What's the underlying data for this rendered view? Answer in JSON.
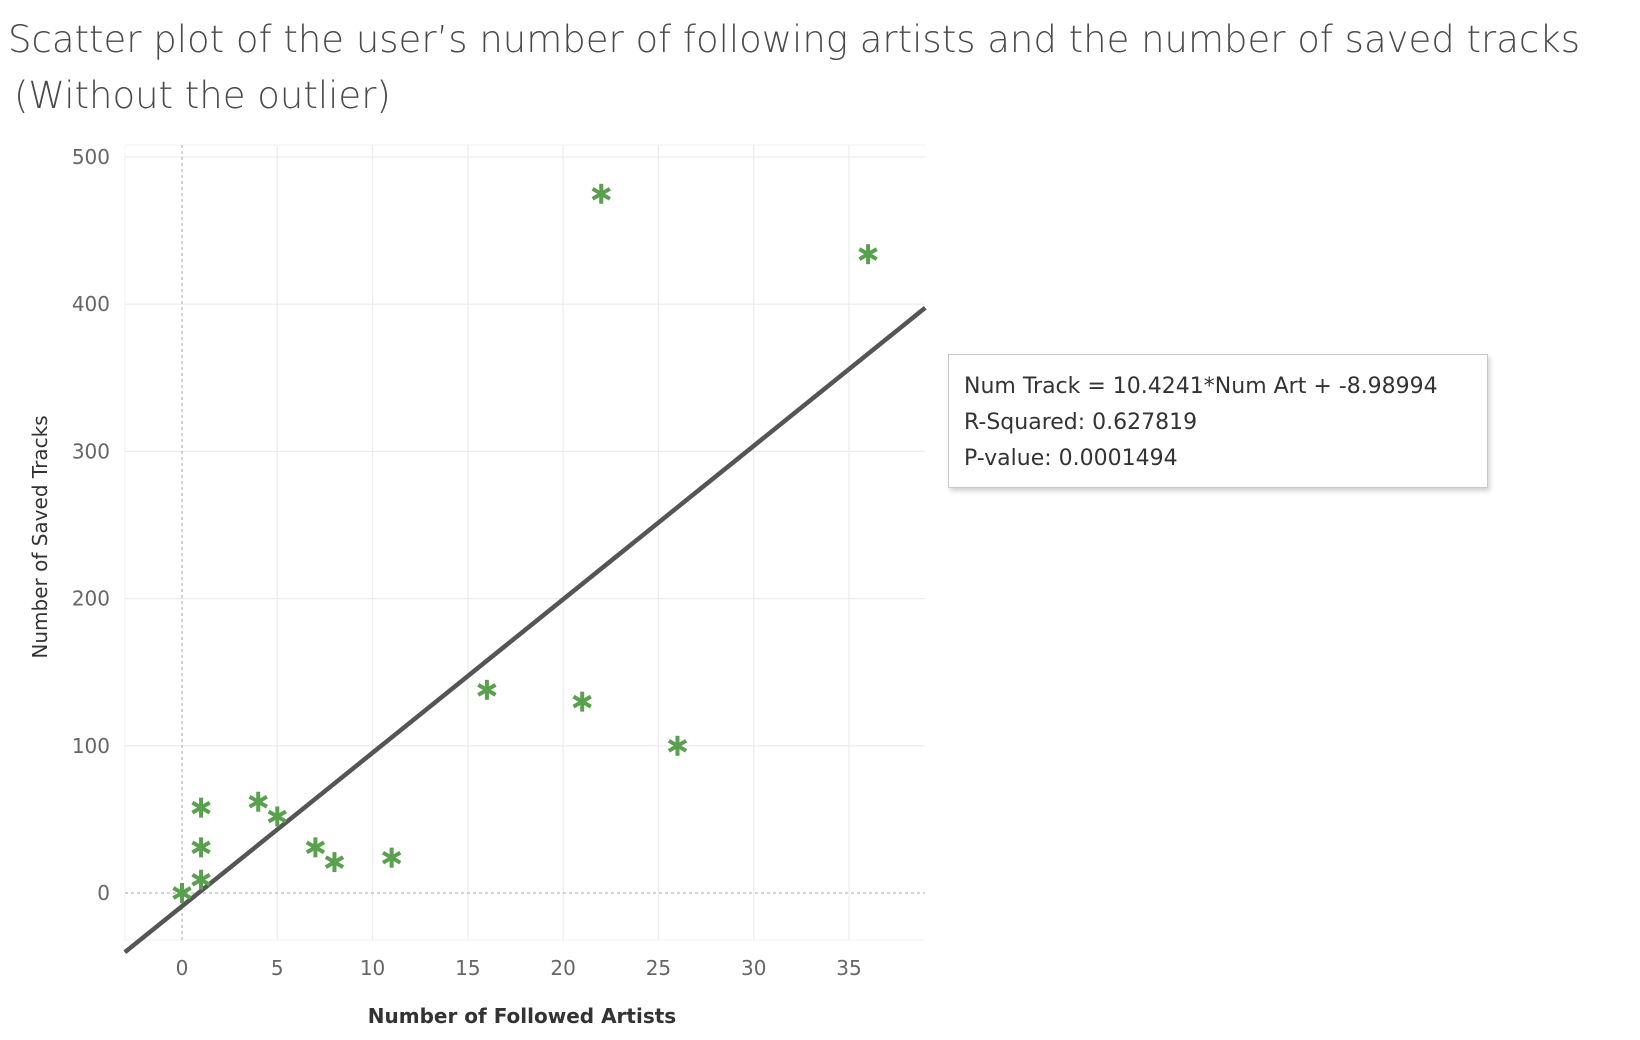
{
  "title": {
    "line1": "Scatter plot of the user’s number of following artists and the number of saved tracks",
    "line2": "(Without the outlier)"
  },
  "trend_info": {
    "equation": "Num Track = 10.4241*Num Art + -8.98994",
    "r_squared": "R-Squared: 0.627819",
    "p_value": "P-value: 0.0001494"
  },
  "chart_data": {
    "type": "scatter",
    "xlabel": "Number of Followed Artists",
    "ylabel": "Number of Saved Tracks",
    "xlim": [
      -3,
      39
    ],
    "ylim": [
      -30,
      510
    ],
    "x_ticks": [
      0,
      5,
      10,
      15,
      20,
      25,
      30,
      35
    ],
    "y_ticks": [
      0,
      100,
      200,
      300,
      400,
      500
    ],
    "marker": "asterisk",
    "marker_color": "#59a14f",
    "trend_line": {
      "slope": 10.4241,
      "intercept": -8.98994,
      "color": "#555555"
    },
    "zero_lines": true,
    "grid": true,
    "points": [
      {
        "x": 0,
        "y": 0
      },
      {
        "x": 1,
        "y": 9
      },
      {
        "x": 1,
        "y": 31
      },
      {
        "x": 1,
        "y": 58
      },
      {
        "x": 4,
        "y": 62
      },
      {
        "x": 5,
        "y": 52
      },
      {
        "x": 7,
        "y": 31
      },
      {
        "x": 8,
        "y": 21
      },
      {
        "x": 11,
        "y": 24
      },
      {
        "x": 16,
        "y": 138
      },
      {
        "x": 21,
        "y": 130
      },
      {
        "x": 22,
        "y": 475
      },
      {
        "x": 26,
        "y": 100
      },
      {
        "x": 36,
        "y": 434
      }
    ]
  }
}
